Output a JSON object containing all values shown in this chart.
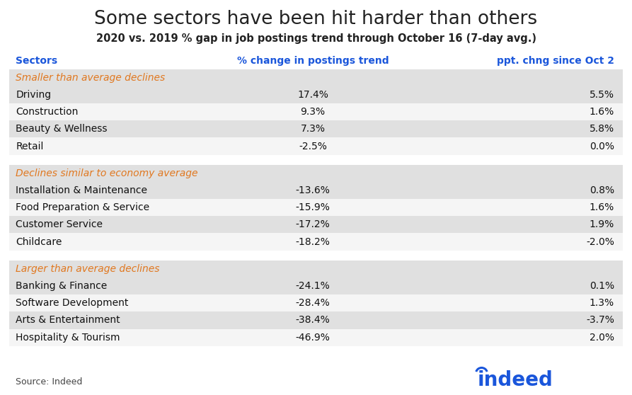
{
  "title": "Some sectors have been hit harder than others",
  "subtitle": "2020 vs. 2019 % gap in job postings trend through October 16 (7-day avg.)",
  "col_headers": [
    "Sectors",
    "% change in postings trend",
    "ppt. chng since Oct 2"
  ],
  "groups": [
    {
      "label": "Smaller than average declines",
      "rows": [
        [
          "Driving",
          "17.4%",
          "5.5%"
        ],
        [
          "Construction",
          "9.3%",
          "1.6%"
        ],
        [
          "Beauty & Wellness",
          "7.3%",
          "5.8%"
        ],
        [
          "Retail",
          "-2.5%",
          "0.0%"
        ]
      ]
    },
    {
      "label": "Declines similar to economy average",
      "rows": [
        [
          "Installation & Maintenance",
          "-13.6%",
          "0.8%"
        ],
        [
          "Food Preparation & Service",
          "-15.9%",
          "1.6%"
        ],
        [
          "Customer Service",
          "-17.2%",
          "1.9%"
        ],
        [
          "Childcare",
          "-18.2%",
          "-2.0%"
        ]
      ]
    },
    {
      "label": "Larger than average declines",
      "rows": [
        [
          "Banking & Finance",
          "-24.1%",
          "0.1%"
        ],
        [
          "Software Development",
          "-28.4%",
          "1.3%"
        ],
        [
          "Arts & Entertainment",
          "-38.4%",
          "-3.7%"
        ],
        [
          "Hospitality & Tourism",
          "-46.9%",
          "2.0%"
        ]
      ]
    }
  ],
  "source": "Source: Indeed",
  "title_color": "#222222",
  "subtitle_color": "#222222",
  "header_color": "#1a56db",
  "group_label_color": "#e07820",
  "row_text_color": "#111111",
  "alt_row_bg": "#e0e0e0",
  "white_row_bg": "#f5f5f5",
  "group_label_bg": "#e0e0e0",
  "header_row_bg": "#ffffff",
  "indeed_color": "#1a56db",
  "background_color": "#ffffff"
}
